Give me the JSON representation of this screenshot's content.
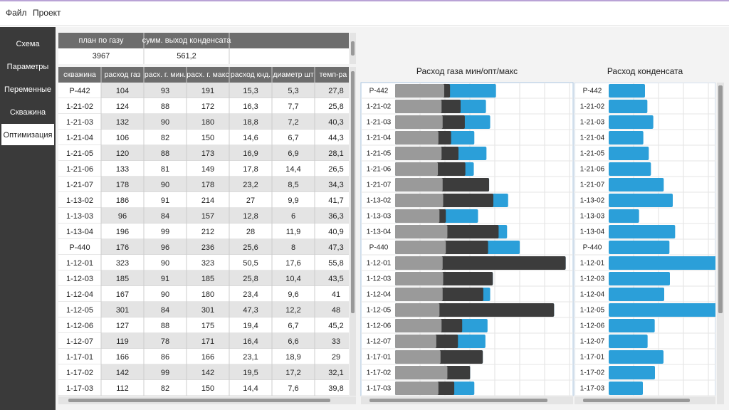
{
  "menu": [
    "Файл",
    "Проект"
  ],
  "sidebar": {
    "items": [
      "Схема",
      "Параметры",
      "Переменные",
      "Скважина",
      "Оптимизация"
    ],
    "active": 4
  },
  "summary": {
    "headers": [
      "план по газу",
      "сумм. выход конденсата"
    ],
    "values": [
      "3967",
      "561,2"
    ]
  },
  "table": {
    "headers": [
      "скважина",
      "расход газ",
      "расх. г. мин.",
      "расх. г. макс",
      "расход кнд.",
      "диаметр шт",
      "темп-ра у"
    ],
    "rows": [
      [
        "Р-442",
        "104",
        "93",
        "191",
        "15,3",
        "5,3",
        "27,8"
      ],
      [
        "1-21-02",
        "124",
        "88",
        "172",
        "16,3",
        "7,7",
        "25,8"
      ],
      [
        "1-21-03",
        "132",
        "90",
        "180",
        "18,8",
        "7,2",
        "40,3"
      ],
      [
        "1-21-04",
        "106",
        "82",
        "150",
        "14,6",
        "6,7",
        "44,3"
      ],
      [
        "1-21-05",
        "120",
        "88",
        "173",
        "16,9",
        "6,9",
        "28,1"
      ],
      [
        "1-21-06",
        "133",
        "81",
        "149",
        "17,8",
        "14,4",
        "26,5"
      ],
      [
        "1-21-07",
        "178",
        "90",
        "178",
        "23,2",
        "8,5",
        "34,3"
      ],
      [
        "1-13-02",
        "186",
        "91",
        "214",
        "27",
        "9,9",
        "41,7"
      ],
      [
        "1-13-03",
        "96",
        "84",
        "157",
        "12,8",
        "6",
        "36,3"
      ],
      [
        "1-13-04",
        "196",
        "99",
        "212",
        "28",
        "11,9",
        "40,9"
      ],
      [
        "Р-440",
        "176",
        "96",
        "236",
        "25,6",
        "8",
        "47,3"
      ],
      [
        "1-12-01",
        "323",
        "90",
        "323",
        "50,5",
        "17,6",
        "55,8"
      ],
      [
        "1-12-03",
        "185",
        "91",
        "185",
        "25,8",
        "10,4",
        "43,5"
      ],
      [
        "1-12-04",
        "167",
        "90",
        "180",
        "23,4",
        "9,6",
        "41"
      ],
      [
        "1-12-05",
        "301",
        "84",
        "301",
        "47,3",
        "12,2",
        "48"
      ],
      [
        "1-12-06",
        "127",
        "88",
        "175",
        "19,4",
        "6,7",
        "45,2"
      ],
      [
        "1-12-07",
        "119",
        "78",
        "171",
        "16,4",
        "6,6",
        "33"
      ],
      [
        "1-17-01",
        "166",
        "86",
        "166",
        "23,1",
        "18,9",
        "29"
      ],
      [
        "1-17-02",
        "142",
        "99",
        "142",
        "19,5",
        "17,2",
        "32,1"
      ],
      [
        "1-17-03",
        "112",
        "82",
        "150",
        "14,4",
        "7,6",
        "39,8"
      ]
    ]
  },
  "charts": [
    {
      "title": "Расход газа мин/опт/макс",
      "xlim": [
        0,
        337
      ],
      "colors": [
        "#9a9a9a",
        "#3c3c3c",
        "#2b9fd9"
      ]
    },
    {
      "title": "Расход конденсата",
      "xlim": [
        0,
        45
      ],
      "colors": [
        "#2b9fd9"
      ]
    }
  ]
}
